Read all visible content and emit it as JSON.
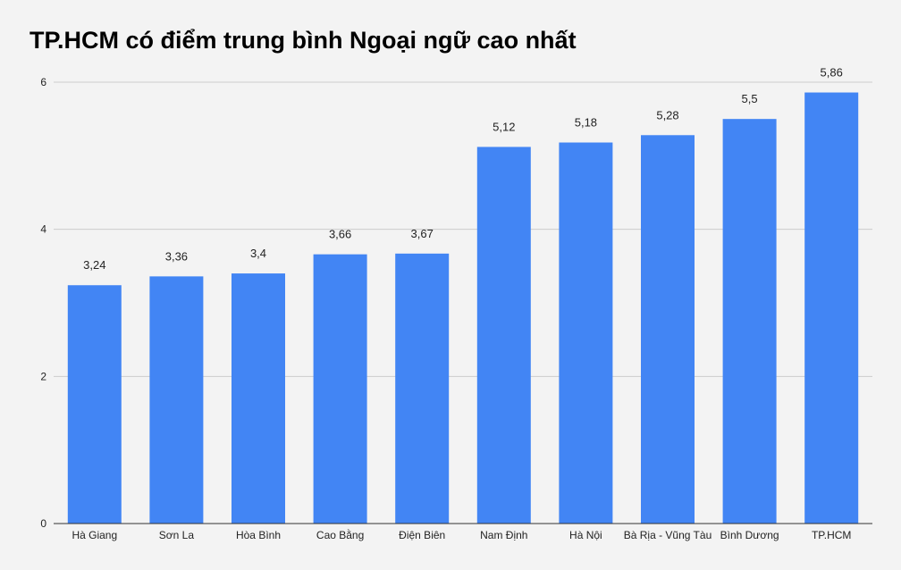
{
  "chart_data": {
    "type": "bar",
    "title": "TP.HCM có điểm trung bình Ngoại ngữ cao nhất",
    "categories": [
      "Hà Giang",
      "Sơn La",
      "Hòa Bình",
      "Cao Bằng",
      "Điện Biên",
      "Nam Định",
      "Hà Nội",
      "Bà Rịa - Vũng Tàu",
      "Bình Dương",
      "TP.HCM"
    ],
    "values": [
      3.24,
      3.36,
      3.4,
      3.66,
      3.67,
      5.12,
      5.18,
      5.28,
      5.5,
      5.86
    ],
    "value_labels": [
      "3,24",
      "3,36",
      "3,4",
      "3,66",
      "3,67",
      "5,12",
      "5,18",
      "5,28",
      "5,5",
      "5,86"
    ],
    "ylim": [
      0,
      6
    ],
    "yticks": [
      0,
      2,
      4,
      6
    ],
    "xlabel": "",
    "ylabel": "",
    "grid": true,
    "legend": "none",
    "colors": {
      "bar": "#4285f4",
      "grid": "#cccccc",
      "axis": "#333333",
      "background": "#f3f3f3"
    }
  }
}
